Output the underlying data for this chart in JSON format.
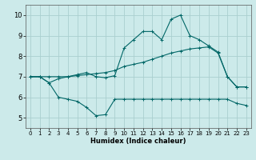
{
  "xlabel": "Humidex (Indice chaleur)",
  "xlim": [
    -0.5,
    23.5
  ],
  "ylim": [
    4.5,
    10.5
  ],
  "xticks": [
    0,
    1,
    2,
    3,
    4,
    5,
    6,
    7,
    8,
    9,
    10,
    11,
    12,
    13,
    14,
    15,
    16,
    17,
    18,
    19,
    20,
    21,
    22,
    23
  ],
  "yticks": [
    5,
    6,
    7,
    8,
    9,
    10
  ],
  "bg_color": "#cceaea",
  "grid_color": "#aacfcf",
  "line_color": "#006666",
  "marker": "+",
  "lines": [
    {
      "x": [
        0,
        1,
        2,
        3,
        4,
        5,
        6,
        7,
        8,
        9,
        10,
        11,
        12,
        13,
        14,
        15,
        16,
        17,
        18,
        19,
        20,
        21,
        22,
        23
      ],
      "y": [
        7.0,
        7.0,
        6.7,
        6.0,
        5.9,
        5.8,
        5.5,
        5.1,
        5.15,
        5.9,
        5.9,
        5.9,
        5.9,
        5.9,
        5.9,
        5.9,
        5.9,
        5.9,
        5.9,
        5.9,
        5.9,
        5.9,
        5.7,
        5.6
      ]
    },
    {
      "x": [
        0,
        1,
        2,
        3,
        4,
        5,
        6,
        7,
        8,
        9,
        10,
        11,
        12,
        13,
        14,
        15,
        16,
        17,
        18,
        19,
        20,
        21,
        22,
        23
      ],
      "y": [
        7.0,
        7.0,
        7.0,
        7.0,
        7.0,
        7.05,
        7.1,
        7.15,
        7.2,
        7.3,
        7.5,
        7.6,
        7.7,
        7.85,
        8.0,
        8.15,
        8.25,
        8.35,
        8.4,
        8.45,
        8.15,
        7.0,
        6.5,
        6.5
      ]
    },
    {
      "x": [
        0,
        1,
        2,
        3,
        4,
        5,
        6,
        7,
        8,
        9,
        10,
        11,
        12,
        13,
        14,
        15,
        16,
        17,
        18,
        19,
        20,
        21,
        22,
        23
      ],
      "y": [
        7.0,
        7.0,
        6.7,
        6.9,
        7.0,
        7.1,
        7.2,
        7.0,
        6.95,
        7.05,
        8.4,
        8.8,
        9.2,
        9.2,
        8.8,
        9.8,
        10.0,
        9.0,
        8.8,
        8.5,
        8.2,
        7.0,
        6.5,
        6.5
      ]
    }
  ]
}
